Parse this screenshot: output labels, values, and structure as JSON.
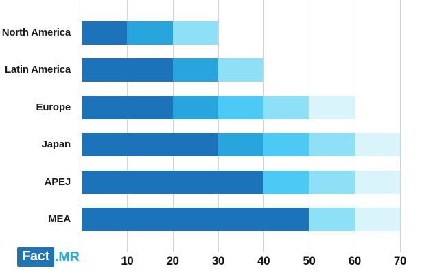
{
  "chart_data": {
    "type": "bar",
    "orientation": "horizontal",
    "stacked": true,
    "title": "",
    "xlabel": "",
    "ylabel": "",
    "xlim": [
      0,
      70
    ],
    "xticks": [
      10,
      20,
      30,
      40,
      50,
      60,
      70
    ],
    "grid": "vertical-only",
    "legend": "none",
    "categories": [
      "North America",
      "Latin America",
      "Europe",
      "Japan",
      "APEJ",
      "MEA"
    ],
    "totals": [
      30,
      40,
      60,
      70,
      70,
      70
    ],
    "rows": [
      {
        "label": "North America",
        "total": 30,
        "segments": [
          {
            "start": 0,
            "end": 10,
            "shade": "dark"
          },
          {
            "start": 10,
            "end": 20,
            "shade": "medium"
          },
          {
            "start": 20,
            "end": 30,
            "shade": "sky"
          }
        ]
      },
      {
        "label": "Latin America",
        "total": 40,
        "segments": [
          {
            "start": 0,
            "end": 20,
            "shade": "dark"
          },
          {
            "start": 20,
            "end": 30,
            "shade": "medium"
          },
          {
            "start": 30,
            "end": 40,
            "shade": "sky"
          }
        ]
      },
      {
        "label": "Europe",
        "total": 60,
        "segments": [
          {
            "start": 0,
            "end": 20,
            "shade": "dark"
          },
          {
            "start": 20,
            "end": 30,
            "shade": "medium"
          },
          {
            "start": 30,
            "end": 40,
            "shade": "cyan"
          },
          {
            "start": 40,
            "end": 50,
            "shade": "sky"
          },
          {
            "start": 50,
            "end": 60,
            "shade": "pale"
          }
        ]
      },
      {
        "label": "Japan",
        "total": 70,
        "segments": [
          {
            "start": 0,
            "end": 30,
            "shade": "dark"
          },
          {
            "start": 30,
            "end": 40,
            "shade": "medium"
          },
          {
            "start": 40,
            "end": 50,
            "shade": "cyan"
          },
          {
            "start": 50,
            "end": 60,
            "shade": "sky"
          },
          {
            "start": 60,
            "end": 70,
            "shade": "pale"
          }
        ]
      },
      {
        "label": "APEJ",
        "total": 70,
        "segments": [
          {
            "start": 0,
            "end": 40,
            "shade": "dark"
          },
          {
            "start": 40,
            "end": 50,
            "shade": "cyan"
          },
          {
            "start": 50,
            "end": 60,
            "shade": "sky"
          },
          {
            "start": 60,
            "end": 70,
            "shade": "pale"
          }
        ]
      },
      {
        "label": "MEA",
        "total": 70,
        "segments": [
          {
            "start": 0,
            "end": 50,
            "shade": "dark"
          },
          {
            "start": 50,
            "end": 60,
            "shade": "sky"
          },
          {
            "start": 60,
            "end": 70,
            "shade": "pale"
          }
        ]
      }
    ],
    "palette": {
      "dark": "#1c73b9",
      "medium": "#29a5dd",
      "cyan": "#4dc9f5",
      "sky": "#8ee0f7",
      "pale": "#d9f4fb"
    },
    "gridline_color": "#d2d2d2"
  },
  "branding": {
    "logo_primary": "Fact",
    "logo_suffix": ".MR",
    "box_color": "#1d74b9",
    "suffix_color": "#29a8e0"
  }
}
